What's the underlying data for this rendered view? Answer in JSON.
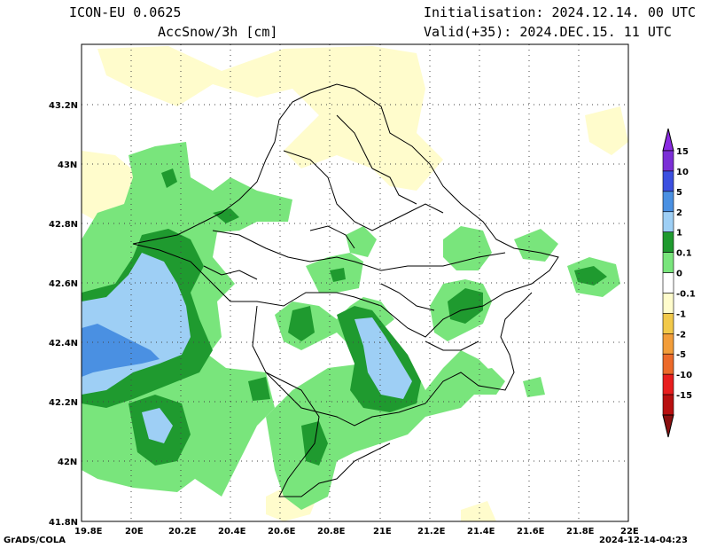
{
  "header": {
    "model": "ICON-EU 0.0625",
    "variable": "AccSnow/3h [cm]",
    "init": "Initialisation: 2024.12.14. 00 UTC",
    "valid": "Valid(+35): 2024.DEC.15. 11 UTC"
  },
  "axes": {
    "x_labels": [
      "19.8E",
      "20E",
      "20.2E",
      "20.4E",
      "20.6E",
      "20.8E",
      "21E",
      "21.2E",
      "21.4E",
      "21.6E",
      "21.8E",
      "22E"
    ],
    "y_labels": [
      "43.2N",
      "43N",
      "42.8N",
      "42.6N",
      "42.4N",
      "42.2N",
      "42N",
      "41.8N"
    ]
  },
  "colorbar": {
    "levels": [
      {
        "label": "15",
        "color": "#7b2fd6"
      },
      {
        "label": "10",
        "color": "#3c50e0"
      },
      {
        "label": "5",
        "color": "#4a90e2"
      },
      {
        "label": "2",
        "color": "#9ecff5"
      },
      {
        "label": "1",
        "color": "#1f9a2f"
      },
      {
        "label": "0.1",
        "color": "#79e57c"
      },
      {
        "label": "0",
        "color": "#ffffff"
      },
      {
        "label": "-0.1",
        "color": "#fffccc"
      },
      {
        "label": "-1",
        "color": "#f2c94a"
      },
      {
        "label": "-2",
        "color": "#f29d3a"
      },
      {
        "label": "-5",
        "color": "#ec6a2a"
      },
      {
        "label": "-10",
        "color": "#e81e1e"
      },
      {
        "label": "-15",
        "color": "#b81010"
      }
    ],
    "top_color": "#8a2be2",
    "bottom_color": "#8b1010"
  },
  "footer": {
    "left": "GrADS/COLA",
    "right": "2024-12-14-04:23"
  }
}
